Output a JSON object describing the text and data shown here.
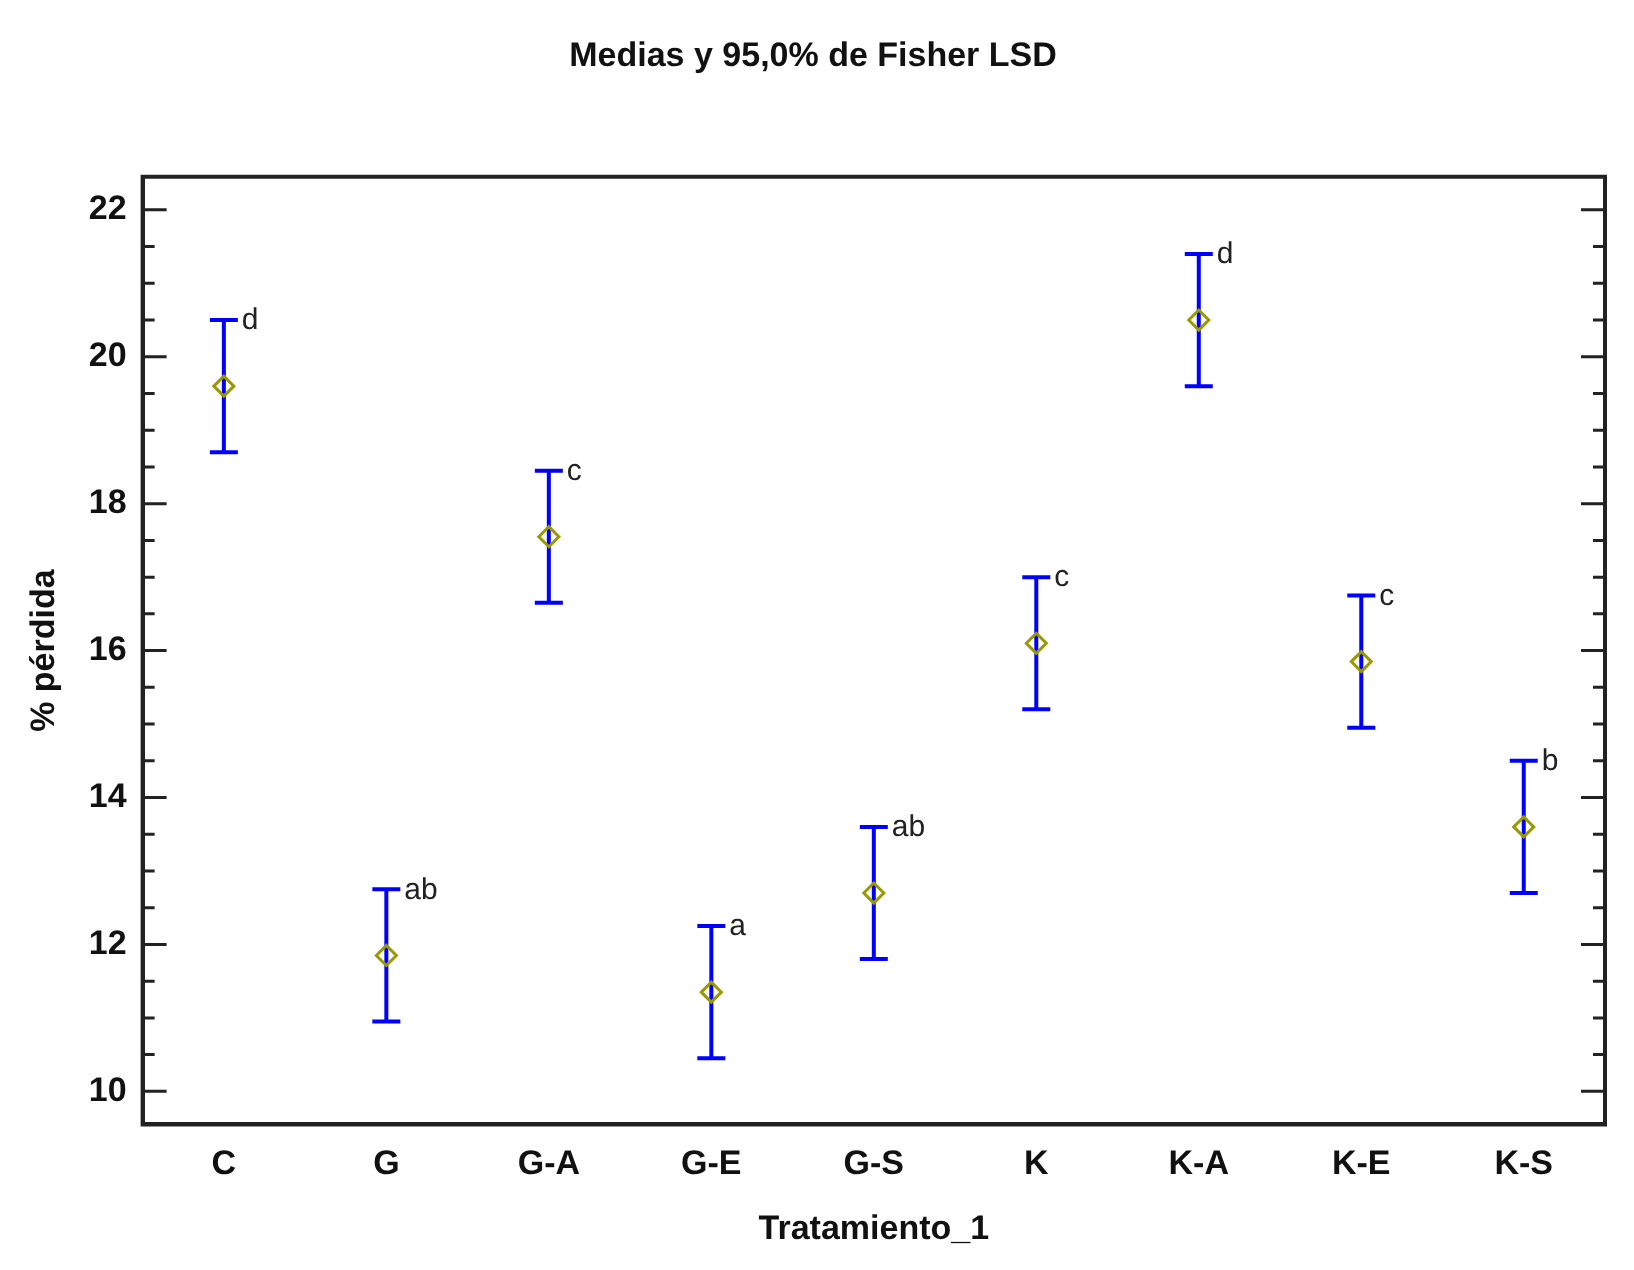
{
  "chart_data": {
    "type": "scatter",
    "title": "Medias y 95,0% de Fisher LSD",
    "xlabel": "Tratamiento_1",
    "ylabel": "% pérdida",
    "categories": [
      "C",
      "G",
      "G-A",
      "G-E",
      "G-S",
      "K",
      "K-A",
      "K-E",
      "K-S"
    ],
    "series": [
      {
        "color": "#999900",
        "values": [
          19.6,
          11.85,
          17.55,
          11.35,
          12.7,
          16.1,
          20.5,
          15.85,
          13.6
        ],
        "errors": [
          0.9,
          0.9,
          0.9,
          0.9,
          0.9,
          0.9,
          0.9,
          0.9,
          0.9
        ]
      }
    ],
    "ylim": [
      9.55,
      22.45
    ],
    "yticks": [
      10,
      {
        "value": 10.5,
        "label": null
      },
      {
        "value": 11,
        "label": null
      },
      {
        "value": 11.5,
        "label": null
      },
      12,
      {
        "value": 12.5,
        "label": null
      },
      {
        "value": 13,
        "label": null
      },
      {
        "value": 13.5,
        "label": null
      },
      14,
      {
        "value": 14.5,
        "label": null
      },
      {
        "value": 15,
        "label": null
      },
      {
        "value": 15.5,
        "label": null
      },
      16,
      {
        "value": 16.5,
        "label": null
      },
      {
        "value": 17,
        "label": null
      },
      {
        "value": 17.5,
        "label": null
      },
      18,
      {
        "value": 18.5,
        "label": null
      },
      {
        "value": 19,
        "label": null
      },
      {
        "value": 19.5,
        "label": null
      },
      20,
      {
        "value": 20.5,
        "label": null
      },
      {
        "value": 21,
        "label": null
      },
      {
        "value": 21.5,
        "label": null
      },
      22
    ],
    "marker": "diamond",
    "grid": false,
    "legend": false,
    "annotations": [
      {
        "text": "d",
        "x": "C",
        "y": 20.5
      },
      {
        "text": "ab",
        "x": "G",
        "y": 12.75
      },
      {
        "text": "c",
        "x": "G-A",
        "y": 18.45
      },
      {
        "text": "a",
        "x": "G-E",
        "y": 12.25
      },
      {
        "text": "ab",
        "x": "G-S",
        "y": 13.6
      },
      {
        "text": "c",
        "x": "K",
        "y": 17
      },
      {
        "text": "d",
        "x": "K-A",
        "y": 21.4
      },
      {
        "text": "c",
        "x": "K-E",
        "y": 16.75
      },
      {
        "text": "b",
        "x": "K-S",
        "y": 14.5
      }
    ]
  }
}
